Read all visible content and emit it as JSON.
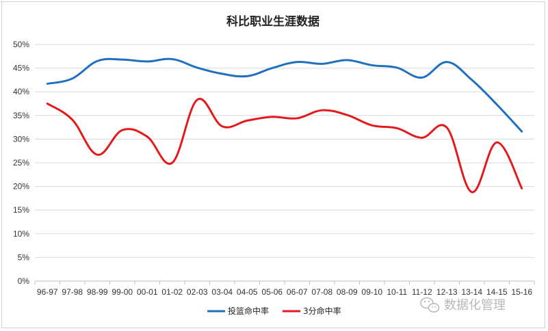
{
  "chart_data": {
    "type": "line",
    "title": "科比职业生涯数据",
    "categories": [
      "96-97",
      "97-98",
      "98-99",
      "99-00",
      "00-01",
      "01-02",
      "02-03",
      "03-04",
      "04-05",
      "05-06",
      "06-07",
      "07-08",
      "08-09",
      "09-10",
      "10-11",
      "11-12",
      "12-13",
      "13-14",
      "14-15",
      "15-16"
    ],
    "series": [
      {
        "name": "投篮命中率",
        "color": "#1f6fc0",
        "values": [
          41.7,
          42.8,
          46.5,
          46.8,
          46.4,
          46.9,
          45.1,
          43.8,
          43.3,
          45.0,
          46.3,
          45.9,
          46.7,
          45.6,
          45.1,
          43.0,
          46.3,
          42.5,
          37.3,
          31.6
        ]
      },
      {
        "name": "3分命中率",
        "color": "#e31a1a",
        "values": [
          37.5,
          34.1,
          26.7,
          31.9,
          30.5,
          25.0,
          38.3,
          32.7,
          33.9,
          34.7,
          34.4,
          36.1,
          35.1,
          32.9,
          32.3,
          30.3,
          32.4,
          18.8,
          29.3,
          19.6
        ]
      }
    ],
    "y_ticks": [
      "0%",
      "5%",
      "10%",
      "15%",
      "20%",
      "25%",
      "30%",
      "35%",
      "40%",
      "45%",
      "50%"
    ],
    "ylim": [
      0,
      50
    ],
    "y_unit": "%",
    "grid": true,
    "legend": "bottom-center"
  },
  "watermark": {
    "text": "数据化管理",
    "icon": "wechat-icon"
  }
}
